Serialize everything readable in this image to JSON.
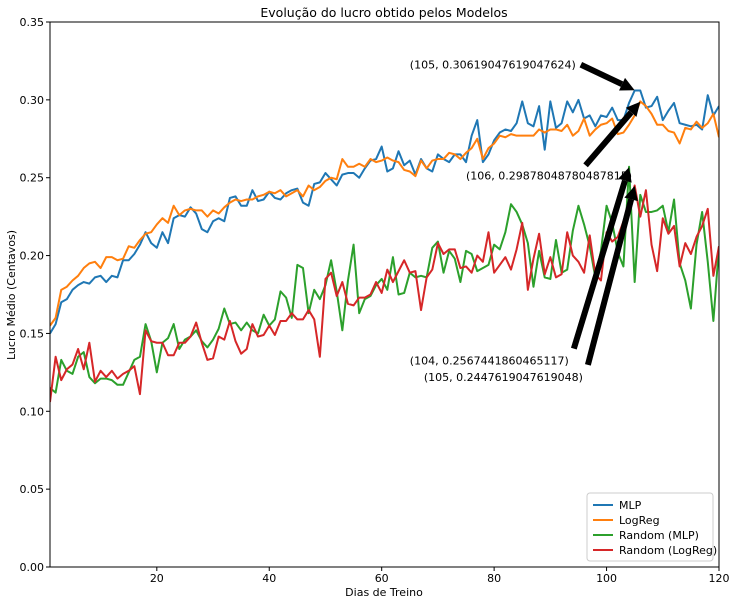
{
  "chart_data": {
    "type": "line",
    "title": "Evolução do lucro obtido pelos Modelos",
    "xlabel": "Dias de Treino",
    "ylabel": "Lucro Médio (Centavos)",
    "xlim": [
      1,
      120
    ],
    "ylim": [
      0.0,
      0.35
    ],
    "xticks": [
      20,
      40,
      60,
      80,
      100,
      120
    ],
    "xtick_labels": [
      "20",
      "40",
      "60",
      "80",
      "100",
      "120"
    ],
    "yticks": [
      0.0,
      0.05,
      0.1,
      0.15,
      0.2,
      0.25,
      0.3,
      0.35
    ],
    "ytick_labels": [
      "0.00",
      "0.05",
      "0.10",
      "0.15",
      "0.20",
      "0.25",
      "0.30",
      "0.35"
    ],
    "grid": false,
    "legend_position": "bottom-right",
    "series": [
      {
        "name": "MLP",
        "color": "#1f77b4",
        "x": [
          1,
          2,
          3,
          4,
          5,
          6,
          7,
          8,
          9,
          10,
          11,
          12,
          13,
          14,
          15,
          16,
          17,
          18,
          19,
          20,
          21,
          22,
          23,
          24,
          25,
          26,
          27,
          28,
          29,
          30,
          31,
          32,
          33,
          34,
          35,
          36,
          37,
          38,
          39,
          40,
          41,
          42,
          43,
          44,
          45,
          46,
          47,
          48,
          49,
          50,
          51,
          52,
          53,
          54,
          55,
          56,
          57,
          58,
          59,
          60,
          61,
          62,
          63,
          64,
          65,
          66,
          67,
          68,
          69,
          70,
          71,
          72,
          73,
          74,
          75,
          76,
          77,
          78,
          79,
          80,
          81,
          82,
          83,
          84,
          85,
          86,
          87,
          88,
          89,
          90,
          91,
          92,
          93,
          94,
          95,
          96,
          97,
          98,
          99,
          100,
          101,
          102,
          103,
          104,
          105,
          106,
          107,
          108,
          109,
          110,
          111,
          112,
          113,
          114,
          115,
          116,
          117,
          118,
          119,
          120
        ],
        "y": [
          0.15,
          0.156,
          0.17,
          0.172,
          0.178,
          0.181,
          0.183,
          0.182,
          0.186,
          0.187,
          0.183,
          0.187,
          0.186,
          0.197,
          0.197,
          0.201,
          0.207,
          0.215,
          0.208,
          0.205,
          0.215,
          0.208,
          0.224,
          0.226,
          0.225,
          0.231,
          0.227,
          0.217,
          0.215,
          0.222,
          0.224,
          0.222,
          0.237,
          0.238,
          0.232,
          0.232,
          0.242,
          0.235,
          0.236,
          0.241,
          0.237,
          0.236,
          0.24,
          0.242,
          0.243,
          0.234,
          0.232,
          0.246,
          0.247,
          0.253,
          0.249,
          0.245,
          0.252,
          0.253,
          0.253,
          0.25,
          0.256,
          0.261,
          0.262,
          0.27,
          0.254,
          0.256,
          0.267,
          0.258,
          0.261,
          0.252,
          0.262,
          0.256,
          0.254,
          0.265,
          0.262,
          0.26,
          0.265,
          0.265,
          0.26,
          0.277,
          0.287,
          0.26,
          0.265,
          0.274,
          0.279,
          0.281,
          0.28,
          0.285,
          0.299,
          0.285,
          0.283,
          0.296,
          0.268,
          0.299,
          0.282,
          0.285,
          0.299,
          0.292,
          0.3,
          0.288,
          0.29,
          0.283,
          0.29,
          0.289,
          0.295,
          0.287,
          0.287,
          0.298,
          0.306,
          0.306,
          0.295,
          0.296,
          0.302,
          0.287,
          0.293,
          0.298,
          0.285,
          0.284,
          0.283,
          0.284,
          0.281,
          0.303,
          0.29,
          0.296
        ]
      },
      {
        "name": "LogReg",
        "color": "#ff7f0e",
        "x": [
          1,
          2,
          3,
          4,
          5,
          6,
          7,
          8,
          9,
          10,
          11,
          12,
          13,
          14,
          15,
          16,
          17,
          18,
          19,
          20,
          21,
          22,
          23,
          24,
          25,
          26,
          27,
          28,
          29,
          30,
          31,
          32,
          33,
          34,
          35,
          36,
          37,
          38,
          39,
          40,
          41,
          42,
          43,
          44,
          45,
          46,
          47,
          48,
          49,
          50,
          51,
          52,
          53,
          54,
          55,
          56,
          57,
          58,
          59,
          60,
          61,
          62,
          63,
          64,
          65,
          66,
          67,
          68,
          69,
          70,
          71,
          72,
          73,
          74,
          75,
          76,
          77,
          78,
          79,
          80,
          81,
          82,
          83,
          84,
          85,
          86,
          87,
          88,
          89,
          90,
          91,
          92,
          93,
          94,
          95,
          96,
          97,
          98,
          99,
          100,
          101,
          102,
          103,
          104,
          105,
          106,
          107,
          108,
          109,
          110,
          111,
          112,
          113,
          114,
          115,
          116,
          117,
          118,
          119,
          120
        ],
        "y": [
          0.155,
          0.16,
          0.178,
          0.18,
          0.184,
          0.187,
          0.192,
          0.195,
          0.196,
          0.192,
          0.199,
          0.199,
          0.197,
          0.198,
          0.206,
          0.205,
          0.21,
          0.214,
          0.215,
          0.22,
          0.224,
          0.221,
          0.232,
          0.226,
          0.229,
          0.23,
          0.229,
          0.229,
          0.225,
          0.229,
          0.227,
          0.231,
          0.234,
          0.236,
          0.235,
          0.236,
          0.236,
          0.238,
          0.239,
          0.241,
          0.24,
          0.242,
          0.238,
          0.24,
          0.242,
          0.238,
          0.245,
          0.242,
          0.244,
          0.248,
          0.25,
          0.249,
          0.262,
          0.257,
          0.257,
          0.259,
          0.257,
          0.262,
          0.26,
          0.261,
          0.263,
          0.261,
          0.26,
          0.255,
          0.254,
          0.251,
          0.261,
          0.256,
          0.261,
          0.262,
          0.262,
          0.266,
          0.265,
          0.262,
          0.266,
          0.269,
          0.275,
          0.262,
          0.269,
          0.272,
          0.277,
          0.276,
          0.278,
          0.277,
          0.277,
          0.277,
          0.277,
          0.281,
          0.279,
          0.281,
          0.281,
          0.28,
          0.284,
          0.277,
          0.28,
          0.288,
          0.277,
          0.281,
          0.284,
          0.285,
          0.288,
          0.278,
          0.279,
          0.284,
          0.29,
          0.299,
          0.296,
          0.291,
          0.284,
          0.284,
          0.28,
          0.279,
          0.272,
          0.282,
          0.281,
          0.286,
          0.282,
          0.285,
          0.291,
          0.276
        ]
      },
      {
        "name": "Random (MLP)",
        "color": "#2ca02c",
        "x": [
          1,
          2,
          3,
          4,
          5,
          6,
          7,
          8,
          9,
          10,
          11,
          12,
          13,
          14,
          15,
          16,
          17,
          18,
          19,
          20,
          21,
          22,
          23,
          24,
          25,
          26,
          27,
          28,
          29,
          30,
          31,
          32,
          33,
          34,
          35,
          36,
          37,
          38,
          39,
          40,
          41,
          42,
          43,
          44,
          45,
          46,
          47,
          48,
          49,
          50,
          51,
          52,
          53,
          54,
          55,
          56,
          57,
          58,
          59,
          60,
          61,
          62,
          63,
          64,
          65,
          66,
          67,
          68,
          69,
          70,
          71,
          72,
          73,
          74,
          75,
          76,
          77,
          78,
          79,
          80,
          81,
          82,
          83,
          84,
          85,
          86,
          87,
          88,
          89,
          90,
          91,
          92,
          93,
          94,
          95,
          96,
          97,
          98,
          99,
          100,
          101,
          102,
          103,
          104,
          105,
          106,
          107,
          108,
          109,
          110,
          111,
          112,
          113,
          114,
          115,
          116,
          117,
          118,
          119,
          120
        ],
        "y": [
          0.115,
          0.112,
          0.133,
          0.126,
          0.124,
          0.135,
          0.138,
          0.122,
          0.118,
          0.121,
          0.121,
          0.12,
          0.117,
          0.117,
          0.125,
          0.133,
          0.135,
          0.156,
          0.145,
          0.125,
          0.144,
          0.147,
          0.156,
          0.14,
          0.146,
          0.148,
          0.152,
          0.145,
          0.141,
          0.146,
          0.153,
          0.166,
          0.156,
          0.157,
          0.152,
          0.157,
          0.152,
          0.15,
          0.162,
          0.155,
          0.159,
          0.177,
          0.173,
          0.16,
          0.194,
          0.192,
          0.163,
          0.178,
          0.172,
          0.181,
          0.197,
          0.177,
          0.152,
          0.184,
          0.207,
          0.163,
          0.172,
          0.174,
          0.181,
          0.185,
          0.178,
          0.199,
          0.175,
          0.176,
          0.189,
          0.186,
          0.187,
          0.186,
          0.205,
          0.209,
          0.189,
          0.203,
          0.198,
          0.183,
          0.203,
          0.201,
          0.19,
          0.192,
          0.194,
          0.207,
          0.204,
          0.215,
          0.233,
          0.228,
          0.22,
          0.208,
          0.18,
          0.203,
          0.186,
          0.185,
          0.21,
          0.189,
          0.191,
          0.216,
          0.232,
          0.22,
          0.206,
          0.186,
          0.203,
          0.232,
          0.221,
          0.202,
          0.193,
          0.257,
          0.183,
          0.239,
          0.228,
          0.228,
          0.229,
          0.232,
          0.215,
          0.236,
          0.195,
          0.184,
          0.166,
          0.207,
          0.228,
          0.196,
          0.158,
          0.206
        ]
      },
      {
        "name": "Random (LogReg)",
        "color": "#d62728",
        "x": [
          1,
          2,
          3,
          4,
          5,
          6,
          7,
          8,
          9,
          10,
          11,
          12,
          13,
          14,
          15,
          16,
          17,
          18,
          19,
          20,
          21,
          22,
          23,
          24,
          25,
          26,
          27,
          28,
          29,
          30,
          31,
          32,
          33,
          34,
          35,
          36,
          37,
          38,
          39,
          40,
          41,
          42,
          43,
          44,
          45,
          46,
          47,
          48,
          49,
          50,
          51,
          52,
          53,
          54,
          55,
          56,
          57,
          58,
          59,
          60,
          61,
          62,
          63,
          64,
          65,
          66,
          67,
          68,
          69,
          70,
          71,
          72,
          73,
          74,
          75,
          76,
          77,
          78,
          79,
          80,
          81,
          82,
          83,
          84,
          85,
          86,
          87,
          88,
          89,
          90,
          91,
          92,
          93,
          94,
          95,
          96,
          97,
          98,
          99,
          100,
          101,
          102,
          103,
          104,
          105,
          106,
          107,
          108,
          109,
          110,
          111,
          112,
          113,
          114,
          115,
          116,
          117,
          118,
          119,
          120
        ],
        "y": [
          0.106,
          0.135,
          0.12,
          0.127,
          0.13,
          0.14,
          0.127,
          0.144,
          0.119,
          0.126,
          0.122,
          0.126,
          0.121,
          0.124,
          0.126,
          0.129,
          0.111,
          0.152,
          0.145,
          0.144,
          0.144,
          0.136,
          0.136,
          0.144,
          0.144,
          0.148,
          0.157,
          0.144,
          0.133,
          0.134,
          0.148,
          0.146,
          0.158,
          0.145,
          0.137,
          0.14,
          0.156,
          0.148,
          0.149,
          0.155,
          0.149,
          0.158,
          0.158,
          0.163,
          0.159,
          0.159,
          0.165,
          0.159,
          0.135,
          0.185,
          0.189,
          0.174,
          0.183,
          0.169,
          0.168,
          0.173,
          0.173,
          0.175,
          0.183,
          0.176,
          0.191,
          0.183,
          0.19,
          0.197,
          0.189,
          0.19,
          0.165,
          0.186,
          0.191,
          0.208,
          0.201,
          0.204,
          0.204,
          0.192,
          0.193,
          0.189,
          0.2,
          0.196,
          0.215,
          0.189,
          0.194,
          0.199,
          0.191,
          0.204,
          0.221,
          0.178,
          0.198,
          0.214,
          0.188,
          0.199,
          0.186,
          0.188,
          0.215,
          0.2,
          0.196,
          0.189,
          0.213,
          0.188,
          0.184,
          0.215,
          0.209,
          0.212,
          0.222,
          0.233,
          0.245,
          0.225,
          0.242,
          0.207,
          0.19,
          0.224,
          0.214,
          0.219,
          0.193,
          0.208,
          0.201,
          0.212,
          0.219,
          0.23,
          0.187,
          0.206
        ]
      }
    ],
    "annotations": [
      {
        "text": "(105, 0.30619047619047624)",
        "point": [
          105,
          0.30619047619047624
        ],
        "text_anchor": [
          65,
          0.32
        ]
      },
      {
        "text": "(106, 0.29878048780487815)",
        "point": [
          106,
          0.29878048780487815
        ],
        "text_anchor": [
          75,
          0.249
        ]
      },
      {
        "text": "(104, 0.2567441860465117)",
        "point": [
          104,
          0.2567441860465117
        ],
        "text_anchor": [
          65,
          0.13
        ]
      },
      {
        "text": "(105, 0.2447619047619048)",
        "point": [
          105,
          0.2447619047619048
        ],
        "text_anchor": [
          67.5,
          0.1195
        ]
      }
    ]
  }
}
